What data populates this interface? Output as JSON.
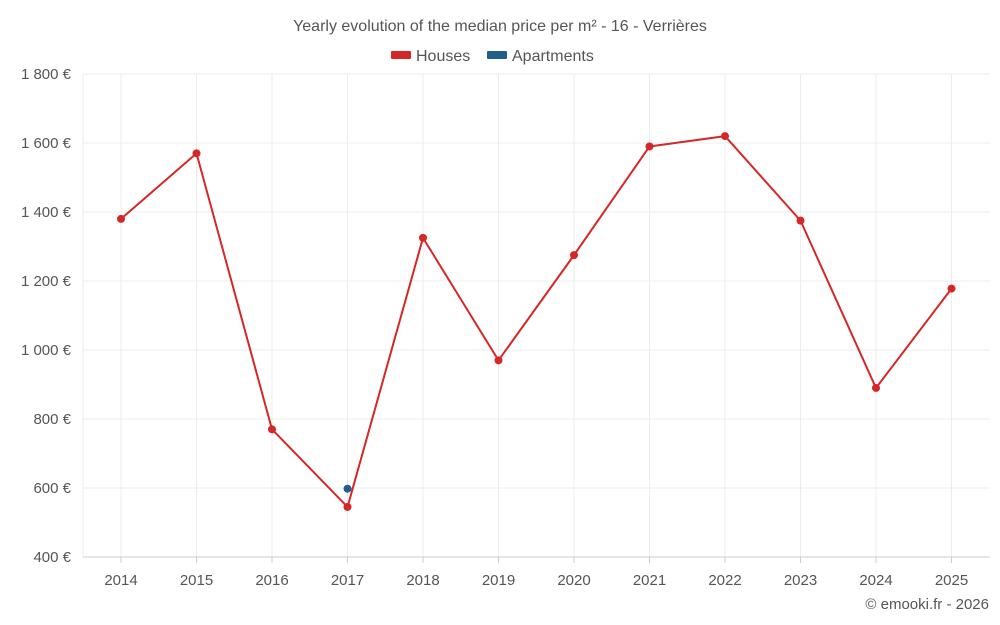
{
  "chart_data": {
    "type": "line",
    "title": "Yearly evolution of the median price per m² - 16 - Verrières",
    "xlabel": "",
    "ylabel": "",
    "categories": [
      "2014",
      "2015",
      "2016",
      "2017",
      "2018",
      "2019",
      "2020",
      "2021",
      "2022",
      "2023",
      "2024",
      "2025"
    ],
    "ylim": [
      400,
      1800
    ],
    "yticks": [
      400,
      600,
      800,
      1000,
      1200,
      1400,
      1600,
      1800
    ],
    "ytick_labels": [
      "400 €",
      "600 €",
      "800 €",
      "1 000 €",
      "1 200 €",
      "1 400 €",
      "1 600 €",
      "1 800 €"
    ],
    "grid": true,
    "legend_position": "top-center",
    "series": [
      {
        "name": "Houses",
        "color": "#d62728",
        "values": [
          1380,
          1570,
          770,
          545,
          1325,
          970,
          1275,
          1590,
          1620,
          1375,
          890,
          1178
        ]
      },
      {
        "name": "Apartments",
        "color": "#1f5f8b",
        "values": [
          null,
          null,
          null,
          598,
          null,
          null,
          null,
          null,
          null,
          null,
          null,
          null
        ]
      }
    ],
    "copyright": "© emooki.fr - 2026"
  }
}
